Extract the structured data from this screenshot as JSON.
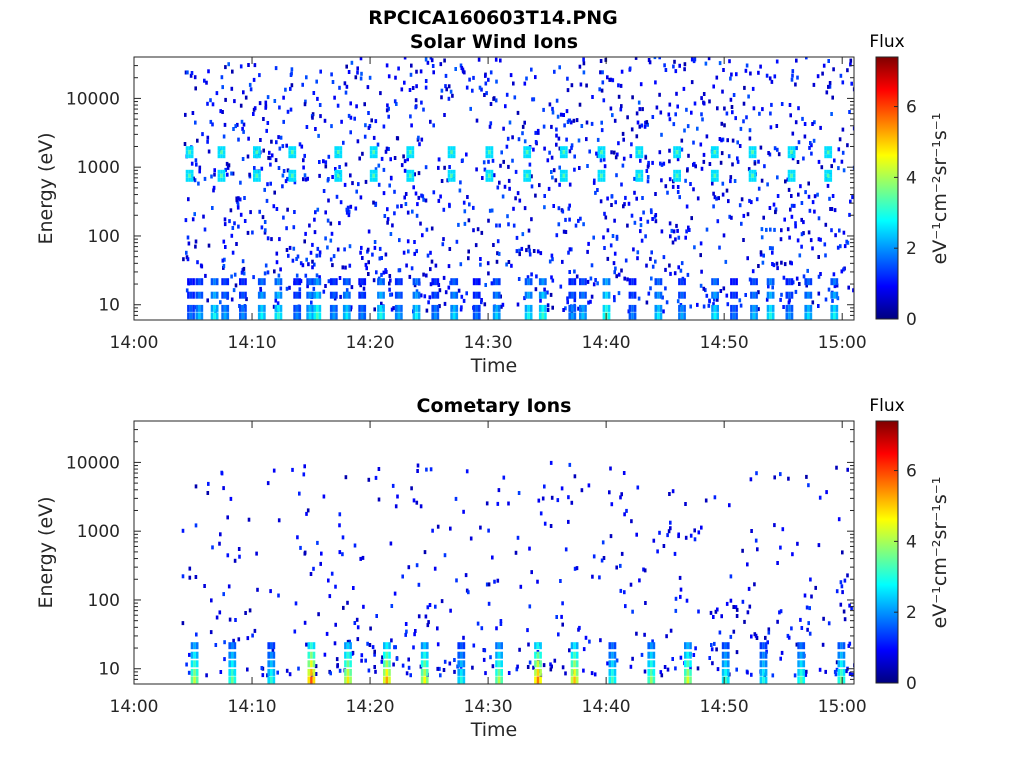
{
  "figure": {
    "title": "RPCICA160603T14.PNG"
  },
  "colors": {
    "jet": [
      "#00007f",
      "#0000ff",
      "#007fff",
      "#00ffff",
      "#7fff7f",
      "#ffff00",
      "#ff7f00",
      "#ff0000",
      "#7f0000"
    ]
  },
  "chart_data": [
    {
      "type": "heatmap",
      "title": "Solar Wind Ions",
      "xlabel": "Time",
      "ylabel": "Energy (eV)",
      "yscale": "log",
      "xlim": [
        "14:00",
        "15:01"
      ],
      "ylim": [
        6,
        40000
      ],
      "x_ticks": [
        "14:00",
        "14:10",
        "14:20",
        "14:30",
        "14:40",
        "14:50",
        "15:00"
      ],
      "y_ticks": [
        10,
        100,
        1000,
        10000
      ],
      "y_tick_labels": [
        "10",
        "100",
        "1000",
        "10000"
      ],
      "colorbar": {
        "title": "Flux",
        "label": "eV⁻¹cm⁻²sr⁻¹s⁻¹",
        "range": [
          0,
          7.4
        ],
        "ticks": [
          0,
          2,
          4,
          6
        ],
        "tick_labels": [
          "0",
          "2",
          "4",
          "6"
        ]
      },
      "peaks": {
        "times": [
          "14:04.6",
          "14:07.3",
          "14:10.3",
          "14:13.3",
          "14:17.2",
          "14:20.2",
          "14:23.3",
          "14:26.8",
          "14:30.0",
          "14:33.2",
          "14:36.3",
          "14:39.5",
          "14:42.7",
          "14:45.9",
          "14:49.1",
          "14:52.3",
          "14:55.6",
          "14:58.7"
        ],
        "energies_eV": [
          750,
          1650
        ],
        "flux": 3.4
      },
      "low_energy_bursts": {
        "times": [
          "14:04.5",
          "14:05.2",
          "14:06.5",
          "14:07.4",
          "14:08.9",
          "14:10.5",
          "14:11.9",
          "14:13.5",
          "14:14.6",
          "14:15.2",
          "14:16.6",
          "14:17.7",
          "14:19.0",
          "14:20.6",
          "14:22.1",
          "14:23.6",
          "14:25.2",
          "14:26.8",
          "14:28.7",
          "14:30.4",
          "14:33.1",
          "14:34.3",
          "14:36.8",
          "14:37.7",
          "14:39.7",
          "14:41.9",
          "14:44.1",
          "14:46.1",
          "14:48.9",
          "14:50.5",
          "14:52.2",
          "14:53.6",
          "14:55.2",
          "14:56.8",
          "14:59.0"
        ],
        "energies_eV": [
          7,
          9,
          14,
          22
        ],
        "flux": [
          1.8,
          2.4,
          2.9,
          2.2,
          2.0,
          2.8,
          3.1,
          1.9,
          2.6,
          3.3,
          2.1,
          2.7,
          1.9,
          3.0,
          2.3,
          2.8,
          2.0,
          2.6,
          1.8,
          2.5,
          2.9,
          3.2,
          2.1,
          2.4,
          3.4,
          1.9,
          2.7,
          2.2,
          2.8,
          1.8,
          2.4,
          3.0,
          2.1,
          2.6,
          2.9
        ]
      },
      "background": {
        "energy_range_eV": [
          8,
          40000
        ],
        "flux_range": [
          0.3,
          1.6
        ],
        "density": "sparse"
      }
    },
    {
      "type": "heatmap",
      "title": "Cometary Ions",
      "xlabel": "Time",
      "ylabel": "Energy (eV)",
      "yscale": "log",
      "xlim": [
        "14:00",
        "15:01"
      ],
      "ylim": [
        6,
        40000
      ],
      "x_ticks": [
        "14:00",
        "14:10",
        "14:20",
        "14:30",
        "14:40",
        "14:50",
        "15:00"
      ],
      "y_ticks": [
        10,
        100,
        1000,
        10000
      ],
      "y_tick_labels": [
        "10",
        "100",
        "1000",
        "10000"
      ],
      "colorbar": {
        "title": "Flux",
        "label": "eV⁻¹cm⁻²sr⁻¹s⁻¹",
        "range": [
          0,
          7.4
        ],
        "ticks": [
          0,
          2,
          4,
          6
        ],
        "tick_labels": [
          "0",
          "2",
          "4",
          "6"
        ]
      },
      "low_energy_bursts": {
        "times": [
          "14:04.8",
          "14:08.0",
          "14:11.3",
          "14:14.7",
          "14:17.8",
          "14:21.1",
          "14:24.3",
          "14:27.4",
          "14:30.6",
          "14:33.9",
          "14:37.0",
          "14:40.2",
          "14:43.5",
          "14:46.6",
          "14:49.8",
          "14:53.0",
          "14:56.2",
          "14:59.6"
        ],
        "energies_eV": [
          7,
          9,
          12,
          16,
          22
        ],
        "flux": [
          4.2,
          3.6,
          3.1,
          5.9,
          4.8,
          5.3,
          4.6,
          3.0,
          4.1,
          5.6,
          5.1,
          3.3,
          3.9,
          4.4,
          3.2,
          3.0,
          3.4,
          3.6
        ]
      },
      "background": {
        "energy_range_eV": [
          8,
          10000
        ],
        "flux_range": [
          0.3,
          1.4
        ],
        "density": "sparse"
      }
    }
  ]
}
